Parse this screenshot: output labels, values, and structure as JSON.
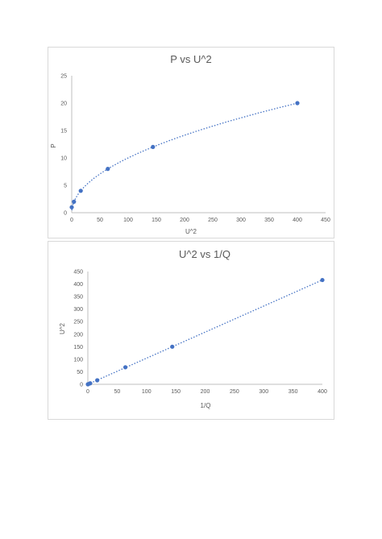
{
  "charts": [
    {
      "type": "scatter",
      "title": "P vs U^2",
      "xlabel": "U^2",
      "ylabel": "P",
      "xlim": [
        0,
        450
      ],
      "ylim": [
        0,
        25
      ],
      "xticks": [
        0,
        50,
        100,
        150,
        200,
        250,
        300,
        350,
        400,
        450
      ],
      "yticks": [
        0,
        5,
        10,
        15,
        20,
        25
      ],
      "trendline": "power",
      "series": [
        {
          "x": [
            0,
            4,
            16,
            64,
            144,
            400
          ],
          "y": [
            1,
            2,
            4,
            8,
            12,
            20
          ]
        }
      ]
    },
    {
      "type": "scatter",
      "title": "U^2 vs 1/Q",
      "xlabel": "1/Q",
      "ylabel": "U^2",
      "xlim": [
        0,
        400
      ],
      "ylim": [
        0,
        450
      ],
      "xticks": [
        0,
        50,
        100,
        150,
        200,
        250,
        300,
        350,
        400
      ],
      "yticks": [
        0,
        50,
        100,
        150,
        200,
        250,
        300,
        350,
        400,
        450
      ],
      "trendline": "linear",
      "series": [
        {
          "x": [
            0,
            1,
            4,
            16,
            64,
            144,
            400
          ],
          "y": [
            0,
            1,
            4,
            16,
            68,
            150,
            416
          ]
        }
      ]
    }
  ],
  "colors": {
    "marker": "#4472c4",
    "text": "#595959",
    "axis": "#bfbfbf",
    "border": "#d9d9d9"
  }
}
